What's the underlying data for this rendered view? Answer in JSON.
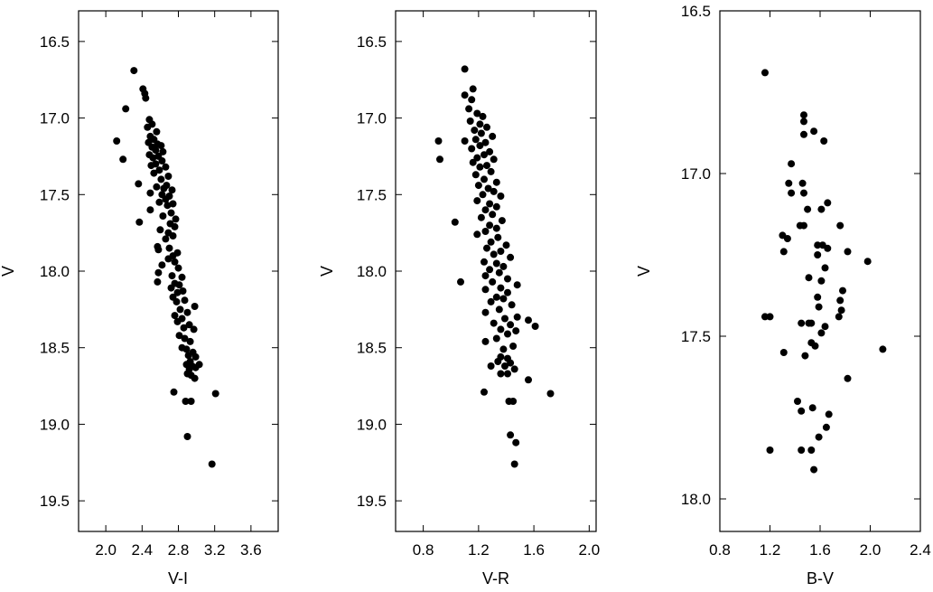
{
  "chart_data": [
    {
      "type": "scatter",
      "xlabel": "V-I",
      "ylabel": "V",
      "xlim": [
        1.7,
        3.9
      ],
      "ylim": [
        19.7,
        16.3
      ],
      "y_inverted": true,
      "xticks": [
        2.0,
        2.4,
        2.8,
        3.2,
        3.6
      ],
      "xtick_labels": [
        "2.0",
        "2.4",
        "2.8",
        "3.2",
        "3.6"
      ],
      "yticks": [
        16.5,
        17.0,
        17.5,
        18.0,
        18.5,
        19.0,
        19.5
      ],
      "ytick_labels": [
        "16.5",
        "17.0",
        "17.5",
        "18.0",
        "18.5",
        "19.0",
        "19.5"
      ],
      "grid": false,
      "points": [
        [
          2.31,
          16.69
        ],
        [
          2.41,
          16.81
        ],
        [
          2.43,
          16.84
        ],
        [
          2.44,
          16.87
        ],
        [
          2.22,
          16.94
        ],
        [
          2.48,
          17.01
        ],
        [
          2.51,
          17.04
        ],
        [
          2.46,
          17.06
        ],
        [
          2.56,
          17.09
        ],
        [
          2.49,
          17.12
        ],
        [
          2.53,
          17.14
        ],
        [
          2.12,
          17.15
        ],
        [
          2.47,
          17.16
        ],
        [
          2.57,
          17.17
        ],
        [
          2.61,
          17.18
        ],
        [
          2.51,
          17.19
        ],
        [
          2.55,
          17.21
        ],
        [
          2.63,
          17.22
        ],
        [
          2.48,
          17.24
        ],
        [
          2.58,
          17.25
        ],
        [
          2.52,
          17.26
        ],
        [
          2.19,
          17.27
        ],
        [
          2.62,
          17.28
        ],
        [
          2.55,
          17.3
        ],
        [
          2.5,
          17.31
        ],
        [
          2.66,
          17.32
        ],
        [
          2.59,
          17.34
        ],
        [
          2.53,
          17.36
        ],
        [
          2.69,
          17.38
        ],
        [
          2.61,
          17.4
        ],
        [
          2.36,
          17.43
        ],
        [
          2.67,
          17.44
        ],
        [
          2.56,
          17.45
        ],
        [
          2.64,
          17.46
        ],
        [
          2.73,
          17.47
        ],
        [
          2.49,
          17.49
        ],
        [
          2.62,
          17.5
        ],
        [
          2.7,
          17.51
        ],
        [
          2.66,
          17.53
        ],
        [
          2.59,
          17.55
        ],
        [
          2.74,
          17.56
        ],
        [
          2.68,
          17.57
        ],
        [
          2.49,
          17.6
        ],
        [
          2.72,
          17.62
        ],
        [
          2.63,
          17.64
        ],
        [
          2.77,
          17.66
        ],
        [
          2.37,
          17.68
        ],
        [
          2.71,
          17.69
        ],
        [
          2.76,
          17.71
        ],
        [
          2.6,
          17.73
        ],
        [
          2.69,
          17.75
        ],
        [
          2.74,
          17.77
        ],
        [
          2.66,
          17.79
        ],
        [
          2.57,
          17.84
        ],
        [
          2.7,
          17.85
        ],
        [
          2.58,
          17.86
        ],
        [
          2.79,
          17.88
        ],
        [
          2.74,
          17.9
        ],
        [
          2.69,
          17.92
        ],
        [
          2.76,
          17.94
        ],
        [
          2.62,
          17.96
        ],
        [
          2.8,
          17.98
        ],
        [
          2.58,
          18.01
        ],
        [
          2.73,
          18.03
        ],
        [
          2.84,
          18.04
        ],
        [
          2.57,
          18.07
        ],
        [
          2.76,
          18.08
        ],
        [
          2.81,
          18.09
        ],
        [
          2.72,
          18.11
        ],
        [
          2.85,
          18.13
        ],
        [
          2.79,
          18.14
        ],
        [
          2.74,
          18.17
        ],
        [
          2.87,
          18.19
        ],
        [
          2.78,
          18.2
        ],
        [
          2.98,
          18.23
        ],
        [
          2.82,
          18.25
        ],
        [
          2.9,
          18.27
        ],
        [
          2.76,
          18.29
        ],
        [
          2.84,
          18.31
        ],
        [
          2.79,
          18.33
        ],
        [
          2.92,
          18.35
        ],
        [
          2.86,
          18.37
        ],
        [
          2.97,
          18.38
        ],
        [
          2.81,
          18.42
        ],
        [
          2.87,
          18.44
        ],
        [
          2.93,
          18.46
        ],
        [
          2.84,
          18.5
        ],
        [
          2.89,
          18.51
        ],
        [
          2.96,
          18.53
        ],
        [
          2.91,
          18.55
        ],
        [
          2.99,
          18.56
        ],
        [
          2.93,
          18.59
        ],
        [
          2.89,
          18.61
        ],
        [
          3.03,
          18.61
        ],
        [
          2.95,
          18.62
        ],
        [
          2.99,
          18.63
        ],
        [
          2.92,
          18.64
        ],
        [
          2.9,
          18.67
        ],
        [
          2.94,
          18.68
        ],
        [
          2.98,
          18.7
        ],
        [
          2.75,
          18.79
        ],
        [
          3.21,
          18.8
        ],
        [
          2.88,
          18.85
        ],
        [
          2.94,
          18.85
        ],
        [
          2.9,
          19.08
        ],
        [
          3.17,
          19.26
        ]
      ]
    },
    {
      "type": "scatter",
      "xlabel": "V-R",
      "ylabel": "V",
      "xlim": [
        0.6,
        2.05
      ],
      "ylim": [
        19.7,
        16.3
      ],
      "y_inverted": true,
      "xticks": [
        0.8,
        1.2,
        1.6,
        2.0
      ],
      "xtick_labels": [
        "0.8",
        "1.2",
        "1.6",
        "2.0"
      ],
      "yticks": [
        16.5,
        17.0,
        17.5,
        18.0,
        18.5,
        19.0,
        19.5
      ],
      "ytick_labels": [
        "16.5",
        "17.0",
        "17.5",
        "18.0",
        "18.5",
        "19.0",
        "19.5"
      ],
      "grid": false,
      "points": [
        [
          1.1,
          16.68
        ],
        [
          1.16,
          16.81
        ],
        [
          1.1,
          16.85
        ],
        [
          1.15,
          16.88
        ],
        [
          1.13,
          16.94
        ],
        [
          1.19,
          16.97
        ],
        [
          1.23,
          16.99
        ],
        [
          1.14,
          17.02
        ],
        [
          1.21,
          17.04
        ],
        [
          1.26,
          17.06
        ],
        [
          1.17,
          17.08
        ],
        [
          1.22,
          17.1
        ],
        [
          1.3,
          17.12
        ],
        [
          1.18,
          17.14
        ],
        [
          0.91,
          17.15
        ],
        [
          1.1,
          17.15
        ],
        [
          1.25,
          17.16
        ],
        [
          1.21,
          17.18
        ],
        [
          1.15,
          17.2
        ],
        [
          1.28,
          17.22
        ],
        [
          1.24,
          17.24
        ],
        [
          1.19,
          17.26
        ],
        [
          0.92,
          17.27
        ],
        [
          1.31,
          17.27
        ],
        [
          1.16,
          17.29
        ],
        [
          1.26,
          17.31
        ],
        [
          1.21,
          17.32
        ],
        [
          1.29,
          17.35
        ],
        [
          1.18,
          17.37
        ],
        [
          1.24,
          17.4
        ],
        [
          1.33,
          17.42
        ],
        [
          1.2,
          17.44
        ],
        [
          1.27,
          17.46
        ],
        [
          1.31,
          17.48
        ],
        [
          1.23,
          17.5
        ],
        [
          1.36,
          17.51
        ],
        [
          1.19,
          17.54
        ],
        [
          1.28,
          17.56
        ],
        [
          1.33,
          17.58
        ],
        [
          1.25,
          17.6
        ],
        [
          1.3,
          17.63
        ],
        [
          1.22,
          17.65
        ],
        [
          1.37,
          17.67
        ],
        [
          1.03,
          17.68
        ],
        [
          1.28,
          17.7
        ],
        [
          1.33,
          17.72
        ],
        [
          1.25,
          17.74
        ],
        [
          1.19,
          17.76
        ],
        [
          1.34,
          17.78
        ],
        [
          1.29,
          17.81
        ],
        [
          1.4,
          17.83
        ],
        [
          1.26,
          17.85
        ],
        [
          1.36,
          17.87
        ],
        [
          1.31,
          17.89
        ],
        [
          1.43,
          17.91
        ],
        [
          1.24,
          17.94
        ],
        [
          1.33,
          17.95
        ],
        [
          1.38,
          17.97
        ],
        [
          1.28,
          17.99
        ],
        [
          1.35,
          18.01
        ],
        [
          1.25,
          18.03
        ],
        [
          1.41,
          18.05
        ],
        [
          1.07,
          18.07
        ],
        [
          1.3,
          18.07
        ],
        [
          1.48,
          18.09
        ],
        [
          1.36,
          18.11
        ],
        [
          1.25,
          18.12
        ],
        [
          1.41,
          18.14
        ],
        [
          1.33,
          18.17
        ],
        [
          1.38,
          18.18
        ],
        [
          1.29,
          18.2
        ],
        [
          1.44,
          18.22
        ],
        [
          1.35,
          18.25
        ],
        [
          1.25,
          18.27
        ],
        [
          1.48,
          18.3
        ],
        [
          1.39,
          18.31
        ],
        [
          1.56,
          18.32
        ],
        [
          1.31,
          18.34
        ],
        [
          1.43,
          18.35
        ],
        [
          1.61,
          18.36
        ],
        [
          1.36,
          18.38
        ],
        [
          1.47,
          18.39
        ],
        [
          1.41,
          18.41
        ],
        [
          1.33,
          18.44
        ],
        [
          1.25,
          18.46
        ],
        [
          1.45,
          18.49
        ],
        [
          1.38,
          18.51
        ],
        [
          1.36,
          18.56
        ],
        [
          1.41,
          18.57
        ],
        [
          1.34,
          18.59
        ],
        [
          1.43,
          18.6
        ],
        [
          1.29,
          18.62
        ],
        [
          1.39,
          18.62
        ],
        [
          1.46,
          18.64
        ],
        [
          1.36,
          18.67
        ],
        [
          1.41,
          18.67
        ],
        [
          1.56,
          18.71
        ],
        [
          1.24,
          18.79
        ],
        [
          1.72,
          18.8
        ],
        [
          1.45,
          18.85
        ],
        [
          1.42,
          18.85
        ],
        [
          1.43,
          19.07
        ],
        [
          1.47,
          19.12
        ],
        [
          1.46,
          19.26
        ]
      ]
    },
    {
      "type": "scatter",
      "xlabel": "B-V",
      "ylabel": "V",
      "xlim": [
        0.8,
        2.4
      ],
      "ylim": [
        18.1,
        16.5
      ],
      "y_inverted": true,
      "xticks": [
        0.8,
        1.2,
        1.6,
        2.0,
        2.4
      ],
      "xtick_labels": [
        "0.8",
        "1.2",
        "1.6",
        "2.0",
        "2.4"
      ],
      "yticks": [
        16.5,
        17.0,
        17.5,
        18.0
      ],
      "ytick_labels": [
        "16.5",
        "17.0",
        "17.5",
        "18.0"
      ],
      "grid": false,
      "points": [
        [
          1.16,
          16.69
        ],
        [
          1.47,
          16.82
        ],
        [
          1.47,
          16.84
        ],
        [
          1.55,
          16.87
        ],
        [
          1.47,
          16.88
        ],
        [
          1.63,
          16.9
        ],
        [
          1.37,
          16.97
        ],
        [
          1.35,
          17.03
        ],
        [
          1.46,
          17.03
        ],
        [
          1.37,
          17.06
        ],
        [
          1.47,
          17.06
        ],
        [
          1.66,
          17.09
        ],
        [
          1.5,
          17.11
        ],
        [
          1.61,
          17.11
        ],
        [
          1.76,
          17.16
        ],
        [
          1.44,
          17.16
        ],
        [
          1.47,
          17.16
        ],
        [
          1.3,
          17.19
        ],
        [
          1.34,
          17.2
        ],
        [
          1.58,
          17.22
        ],
        [
          1.62,
          17.22
        ],
        [
          1.66,
          17.23
        ],
        [
          1.31,
          17.24
        ],
        [
          1.82,
          17.24
        ],
        [
          1.58,
          17.25
        ],
        [
          1.98,
          17.27
        ],
        [
          1.64,
          17.29
        ],
        [
          1.51,
          17.32
        ],
        [
          1.61,
          17.33
        ],
        [
          1.78,
          17.36
        ],
        [
          1.58,
          17.38
        ],
        [
          1.76,
          17.39
        ],
        [
          1.59,
          17.41
        ],
        [
          1.77,
          17.42
        ],
        [
          1.16,
          17.44
        ],
        [
          1.2,
          17.44
        ],
        [
          1.75,
          17.44
        ],
        [
          1.45,
          17.46
        ],
        [
          1.51,
          17.46
        ],
        [
          1.53,
          17.46
        ],
        [
          1.64,
          17.47
        ],
        [
          1.61,
          17.49
        ],
        [
          1.53,
          17.52
        ],
        [
          1.56,
          17.53
        ],
        [
          2.1,
          17.54
        ],
        [
          1.31,
          17.55
        ],
        [
          1.48,
          17.56
        ],
        [
          1.82,
          17.63
        ],
        [
          1.42,
          17.7
        ],
        [
          1.54,
          17.72
        ],
        [
          1.45,
          17.73
        ],
        [
          1.67,
          17.74
        ],
        [
          1.65,
          17.78
        ],
        [
          1.59,
          17.81
        ],
        [
          1.2,
          17.85
        ],
        [
          1.45,
          17.85
        ],
        [
          1.53,
          17.85
        ],
        [
          1.55,
          17.91
        ]
      ]
    }
  ]
}
